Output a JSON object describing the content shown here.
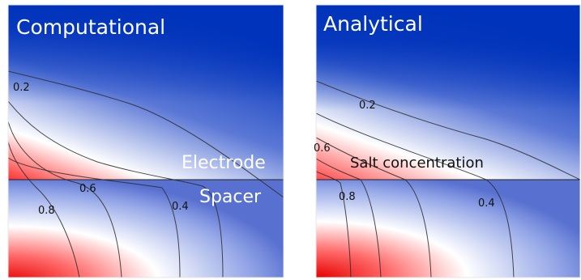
{
  "panels": [
    {
      "title": "Computational",
      "region_labels": [
        "Electrode",
        "Spacer"
      ],
      "contour_levels": [
        "0.2",
        "0.6",
        "0.8",
        "0.4"
      ]
    },
    {
      "title": "Analytical",
      "region_labels": [
        "Salt concentration"
      ],
      "contour_levels": [
        "0.2",
        "0.6",
        "0.8",
        "0.4"
      ]
    }
  ],
  "colors": {
    "high": "#e60000",
    "mid": "#ffffff",
    "low": "#0033bb"
  }
}
